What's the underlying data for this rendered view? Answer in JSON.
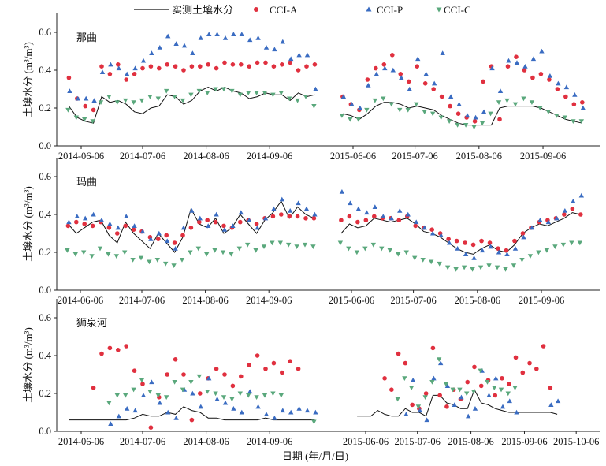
{
  "legend": {
    "measured": "实测土壤水分",
    "cci_a": "CCI-A",
    "cci_p": "CCI-P",
    "cci_c": "CCI-C"
  },
  "colors": {
    "measured": "#111111",
    "cci_a": "#e0303f",
    "cci_p": "#3a6cc2",
    "cci_c": "#5aa87c",
    "axis": "#222222"
  },
  "chart_data": {
    "type": "scatter",
    "xlabel": "日期 (年/月/日)",
    "ylabel": "土壤水分 (m³/m³)",
    "ylim": [
      0,
      0.7
    ],
    "yticks": [
      "0.0",
      "0.2",
      "0.4",
      "0.6"
    ],
    "grid": false,
    "legend_position": "top",
    "x_unit": "days since 06-06 of each year",
    "panels": [
      {
        "title": "那曲",
        "xticks": {
          "2014": [
            "2014-06-06",
            "2014-07-06",
            "2014-08-06",
            "2014-09-06"
          ],
          "2015": [
            "2015-06-06",
            "2015-07-06",
            "2015-08-06",
            "2015-09-06"
          ]
        },
        "segments": [
          {
            "year": "2014",
            "start_day": -6,
            "step_days": 4,
            "measured": [
              0.21,
              0.15,
              0.13,
              0.12,
              0.26,
              0.23,
              0.24,
              0.22,
              0.18,
              0.17,
              0.2,
              0.21,
              0.27,
              0.26,
              0.22,
              0.24,
              0.29,
              0.31,
              0.29,
              0.31,
              0.29,
              0.28,
              0.25,
              0.26,
              0.28,
              0.27,
              0.27,
              0.24,
              0.28,
              0.26,
              0.27
            ],
            "cci_a": [
              0.36,
              0.25,
              0.21,
              0.19,
              0.42,
              0.38,
              0.43,
              0.35,
              0.38,
              0.41,
              0.42,
              0.41,
              0.43,
              0.42,
              0.4,
              0.42,
              0.42,
              0.43,
              0.41,
              0.44,
              0.43,
              0.43,
              0.42,
              0.44,
              0.44,
              0.42,
              0.43,
              0.44,
              0.4,
              0.42,
              0.43
            ],
            "cci_p": [
              0.29,
              0.25,
              0.25,
              0.24,
              0.39,
              0.43,
              0.41,
              0.38,
              0.41,
              0.45,
              0.49,
              0.52,
              0.58,
              0.54,
              0.53,
              0.49,
              0.57,
              0.59,
              0.59,
              0.57,
              0.59,
              0.59,
              0.56,
              0.57,
              0.52,
              0.51,
              0.55,
              0.46,
              0.48,
              0.48,
              0.3
            ],
            "cci_c": [
              0.19,
              0.15,
              0.14,
              0.13,
              0.23,
              0.26,
              0.23,
              0.24,
              0.23,
              0.24,
              0.26,
              0.25,
              0.29,
              0.26,
              0.24,
              0.27,
              0.29,
              0.28,
              0.3,
              0.3,
              0.29,
              0.27,
              0.28,
              0.28,
              0.28,
              0.27,
              0.28,
              0.25,
              0.24,
              0.26,
              0.21
            ]
          },
          {
            "year": "2015",
            "start_day": -5,
            "step_days": 4,
            "measured": [
              0.17,
              0.16,
              0.14,
              0.17,
              0.21,
              0.23,
              0.23,
              0.22,
              0.2,
              0.21,
              0.2,
              0.19,
              0.16,
              0.14,
              0.12,
              0.11,
              0.11,
              0.11,
              0.11,
              0.2,
              0.21,
              0.21,
              0.21,
              0.21,
              0.2,
              0.18,
              0.16,
              0.14,
              0.13,
              0.12
            ],
            "cci_a": [
              0.26,
              0.22,
              0.19,
              0.35,
              0.41,
              0.43,
              0.48,
              0.38,
              0.34,
              0.42,
              0.33,
              0.3,
              0.26,
              0.21,
              0.17,
              0.15,
              0.13,
              0.34,
              0.42,
              0.14,
              0.42,
              0.47,
              0.4,
              0.36,
              0.38,
              0.35,
              0.3,
              0.26,
              0.22,
              0.23
            ],
            "cci_p": [
              0.26,
              0.22,
              0.2,
              0.32,
              0.38,
              0.41,
              0.4,
              0.36,
              0.3,
              0.46,
              0.38,
              0.33,
              0.49,
              0.26,
              0.22,
              0.16,
              0.15,
              0.18,
              0.41,
              0.29,
              0.45,
              0.44,
              0.42,
              0.46,
              0.5,
              0.37,
              0.33,
              0.31,
              0.27,
              0.2
            ],
            "cci_c": [
              0.16,
              0.14,
              0.14,
              0.19,
              0.24,
              0.25,
              0.22,
              0.19,
              0.19,
              0.22,
              0.18,
              0.17,
              0.15,
              0.13,
              0.11,
              0.11,
              0.1,
              0.12,
              0.17,
              0.23,
              0.24,
              0.22,
              0.25,
              0.23,
              0.2,
              0.18,
              0.16,
              0.15,
              0.13,
              0.13
            ]
          }
        ]
      },
      {
        "title": "玛曲",
        "xticks": {
          "2014": [
            "2014-06-06",
            "2014-07-06",
            "2014-08-06",
            "2014-09-06"
          ],
          "2015": [
            "2015-06-06",
            "2015-07-06",
            "2015-08-06",
            "2015-09-06"
          ]
        },
        "segments": [
          {
            "year": "2014",
            "start_day": -6,
            "step_days": 4,
            "measured": [
              0.35,
              0.3,
              0.33,
              0.36,
              0.37,
              0.29,
              0.25,
              0.36,
              0.3,
              0.26,
              0.22,
              0.3,
              0.25,
              0.2,
              0.28,
              0.43,
              0.35,
              0.33,
              0.38,
              0.3,
              0.33,
              0.4,
              0.35,
              0.3,
              0.37,
              0.41,
              0.47,
              0.38,
              0.44,
              0.4,
              0.38
            ],
            "cci_a": [
              0.34,
              0.36,
              0.35,
              0.34,
              0.36,
              0.33,
              0.3,
              0.34,
              0.32,
              0.31,
              0.28,
              0.27,
              0.29,
              0.25,
              0.29,
              0.33,
              0.36,
              0.37,
              0.36,
              0.34,
              0.33,
              0.36,
              0.37,
              0.35,
              0.38,
              0.39,
              0.4,
              0.39,
              0.39,
              0.38,
              0.38
            ],
            "cci_p": [
              0.36,
              0.39,
              0.38,
              0.4,
              0.37,
              0.35,
              0.33,
              0.39,
              0.34,
              0.31,
              0.27,
              0.3,
              0.26,
              0.22,
              0.33,
              0.42,
              0.38,
              0.34,
              0.4,
              0.32,
              0.34,
              0.41,
              0.37,
              0.33,
              0.38,
              0.43,
              0.48,
              0.42,
              0.46,
              0.43,
              0.4
            ],
            "cci_c": [
              0.21,
              0.19,
              0.2,
              0.18,
              0.22,
              0.19,
              0.18,
              0.2,
              0.16,
              0.17,
              0.15,
              0.16,
              0.14,
              0.13,
              0.16,
              0.2,
              0.22,
              0.19,
              0.21,
              0.2,
              0.19,
              0.22,
              0.24,
              0.21,
              0.23,
              0.25,
              0.25,
              0.24,
              0.23,
              0.24,
              0.23
            ]
          },
          {
            "year": "2015",
            "start_day": -5,
            "step_days": 4,
            "measured": [
              0.3,
              0.35,
              0.33,
              0.34,
              0.38,
              0.37,
              0.36,
              0.37,
              0.38,
              0.35,
              0.31,
              0.3,
              0.28,
              0.25,
              0.22,
              0.2,
              0.19,
              0.22,
              0.24,
              0.21,
              0.2,
              0.24,
              0.3,
              0.33,
              0.35,
              0.34,
              0.36,
              0.38,
              0.41,
              0.4
            ],
            "cci_a": [
              0.37,
              0.39,
              0.36,
              0.37,
              0.39,
              0.38,
              0.38,
              0.37,
              0.39,
              0.34,
              0.33,
              0.32,
              0.3,
              0.27,
              0.26,
              0.25,
              0.24,
              0.26,
              0.25,
              0.22,
              0.21,
              0.26,
              0.3,
              0.33,
              0.36,
              0.37,
              0.38,
              0.4,
              0.43,
              0.4
            ],
            "cci_p": [
              0.52,
              0.46,
              0.43,
              0.41,
              0.44,
              0.39,
              0.38,
              0.42,
              0.4,
              0.36,
              0.33,
              0.3,
              0.29,
              0.25,
              0.22,
              0.19,
              0.17,
              0.21,
              0.23,
              0.2,
              0.19,
              0.22,
              0.28,
              0.33,
              0.37,
              0.36,
              0.38,
              0.42,
              0.47,
              0.5
            ],
            "cci_c": [
              0.25,
              0.22,
              0.2,
              0.22,
              0.24,
              0.22,
              0.21,
              0.19,
              0.2,
              0.17,
              0.16,
              0.15,
              0.14,
              0.12,
              0.11,
              0.12,
              0.11,
              0.12,
              0.13,
              0.12,
              0.11,
              0.13,
              0.16,
              0.18,
              0.2,
              0.21,
              0.23,
              0.24,
              0.25,
              0.25
            ]
          }
        ]
      },
      {
        "title": "狮泉河",
        "xticks": {
          "2014": [
            "2014-06-06",
            "2014-07-06",
            "2014-08-06",
            "2014-09-06"
          ],
          "2015": [
            "2015-06-06",
            "2015-07-06",
            "2015-08-06",
            "2015-09-06",
            "2015-10-06"
          ]
        },
        "segments": [
          {
            "year": "2014",
            "start_day": -6,
            "step_days": 4,
            "measured": [
              0.06,
              0.06,
              0.06,
              0.06,
              0.06,
              0.06,
              0.06,
              0.06,
              0.07,
              0.09,
              0.08,
              0.08,
              0.1,
              0.09,
              0.13,
              0.11,
              0.1,
              0.07,
              0.07,
              0.06,
              0.06,
              0.06,
              0.06,
              0.06,
              0.07,
              0.06,
              0.06,
              0.06,
              0.06,
              0.06,
              0.06
            ],
            "cci_a": [
              null,
              null,
              null,
              0.23,
              0.41,
              0.44,
              0.43,
              0.45,
              0.32,
              0.25,
              0.02,
              0.18,
              0.3,
              0.38,
              0.3,
              0.06,
              0.2,
              0.28,
              0.33,
              0.3,
              0.24,
              0.29,
              0.35,
              0.4,
              0.33,
              0.36,
              0.31,
              0.37,
              0.33,
              null,
              null
            ],
            "cci_p": [
              null,
              null,
              null,
              null,
              null,
              0.04,
              0.08,
              0.12,
              0.11,
              0.19,
              0.26,
              0.15,
              0.1,
              0.07,
              0.22,
              0.2,
              0.13,
              0.28,
              0.17,
              0.15,
              0.12,
              0.1,
              0.21,
              0.13,
              0.09,
              0.07,
              0.11,
              0.1,
              0.12,
              0.11,
              0.1
            ],
            "cci_c": [
              null,
              null,
              null,
              null,
              null,
              0.15,
              0.19,
              0.19,
              0.22,
              0.27,
              0.21,
              0.19,
              0.18,
              0.26,
              0.22,
              0.26,
              0.29,
              0.21,
              0.2,
              0.18,
              0.17,
              0.2,
              0.19,
              0.18,
              0.19,
              0.2,
              0.19,
              null,
              null,
              null,
              0.05
            ]
          },
          {
            "year": "2015",
            "start_day": -5,
            "step_days": 4,
            "measured": [
              0.08,
              0.08,
              0.08,
              0.11,
              0.09,
              0.08,
              0.08,
              0.12,
              0.1,
              0.1,
              0.08,
              0.19,
              0.19,
              0.15,
              0.14,
              0.12,
              0.12,
              0.22,
              0.15,
              0.14,
              0.12,
              0.11,
              0.1,
              0.1,
              0.1,
              0.1,
              0.1,
              0.1,
              0.1,
              0.09
            ],
            "cci_a": [
              null,
              null,
              null,
              null,
              0.28,
              0.22,
              0.41,
              0.36,
              0.14,
              0.12,
              0.2,
              0.44,
              0.19,
              0.13,
              0.22,
              0.17,
              0.26,
              0.34,
              0.24,
              0.27,
              0.19,
              0.28,
              0.25,
              0.39,
              0.31,
              0.36,
              0.33,
              0.45,
              0.23,
              null
            ],
            "cci_p": [
              null,
              null,
              null,
              null,
              null,
              null,
              null,
              0.09,
              0.27,
              0.11,
              0.06,
              0.28,
              0.36,
              0.24,
              0.14,
              0.18,
              0.08,
              0.12,
              0.32,
              0.19,
              0.28,
              0.13,
              0.16,
              0.1,
              null,
              null,
              null,
              null,
              0.14,
              0.16
            ],
            "cci_c": [
              null,
              null,
              null,
              null,
              null,
              null,
              0.17,
              0.28,
              0.23,
              0.13,
              0.18,
              0.26,
              0.38,
              0.25,
              0.22,
              0.22,
              0.2,
              0.21,
              0.32,
              0.26,
              0.23,
              0.22,
              0.2,
              0.23,
              null,
              null,
              null,
              null,
              null,
              null
            ]
          }
        ]
      }
    ]
  }
}
